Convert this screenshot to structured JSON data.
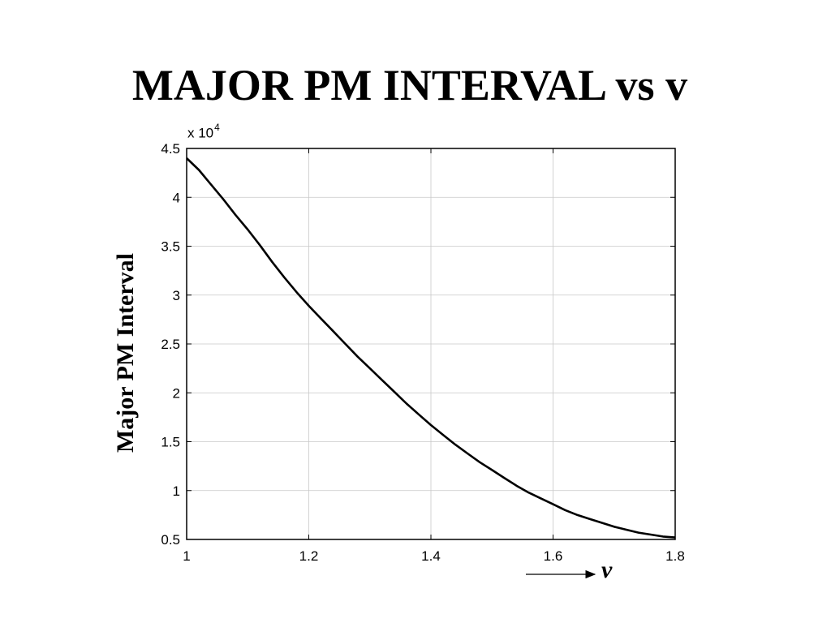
{
  "title": "MAJOR PM INTERVAL vs v",
  "chart_data": {
    "type": "line",
    "title": "MAJOR PM INTERVAL vs v",
    "xlabel": "v",
    "ylabel": "Major PM Interval",
    "y_multiplier": {
      "base": "x 10",
      "exponent": "4"
    },
    "xlim": [
      1,
      1.8
    ],
    "ylim": [
      0.5,
      4.5
    ],
    "x_ticks": [
      1,
      1.2,
      1.4,
      1.6,
      1.8
    ],
    "x_tick_labels": [
      "1",
      "1.2",
      "1.4",
      "1.6",
      "1.8"
    ],
    "y_ticks": [
      0.5,
      1,
      1.5,
      2,
      2.5,
      3,
      3.5,
      4,
      4.5
    ],
    "y_tick_labels": [
      "0.5",
      "1",
      "1.5",
      "2",
      "2.5",
      "3",
      "3.5",
      "4",
      "4.5"
    ],
    "grid": true,
    "series": [
      {
        "x": [
          1.0,
          1.02,
          1.04,
          1.06,
          1.08,
          1.1,
          1.12,
          1.14,
          1.16,
          1.18,
          1.2,
          1.22,
          1.24,
          1.26,
          1.28,
          1.3,
          1.32,
          1.34,
          1.36,
          1.38,
          1.4,
          1.42,
          1.44,
          1.46,
          1.48,
          1.5,
          1.52,
          1.54,
          1.56,
          1.58,
          1.6,
          1.62,
          1.64,
          1.66,
          1.68,
          1.7,
          1.72,
          1.74,
          1.76,
          1.78,
          1.8
        ],
        "y": [
          4.4,
          4.28,
          4.13,
          3.98,
          3.82,
          3.67,
          3.51,
          3.34,
          3.18,
          3.03,
          2.89,
          2.76,
          2.63,
          2.5,
          2.37,
          2.25,
          2.13,
          2.01,
          1.89,
          1.78,
          1.67,
          1.57,
          1.47,
          1.38,
          1.29,
          1.21,
          1.13,
          1.05,
          0.98,
          0.92,
          0.86,
          0.8,
          0.75,
          0.71,
          0.67,
          0.63,
          0.6,
          0.57,
          0.55,
          0.53,
          0.52
        ]
      }
    ]
  }
}
